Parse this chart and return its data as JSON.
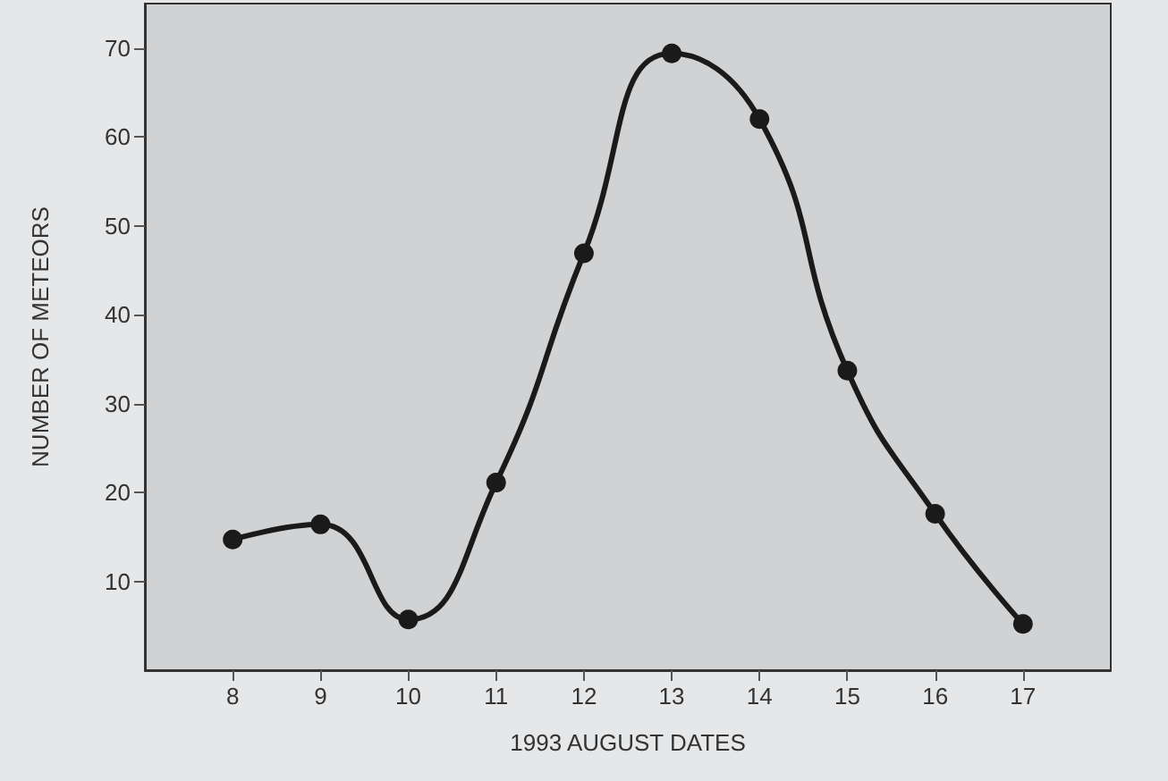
{
  "chart_data": {
    "type": "line",
    "xlabel": "1993 AUGUST DATES",
    "ylabel": "NUMBER OF METEORS",
    "x": [
      8,
      9,
      10,
      11,
      12,
      13,
      14,
      15,
      16,
      17
    ],
    "series": [
      {
        "color": "#1a1a1a",
        "values": [
          14.7,
          16.4,
          5.7,
          21.1,
          46.9,
          69.4,
          62.0,
          33.7,
          17.6,
          5.2
        ]
      }
    ],
    "xlim": [
      7,
      18
    ],
    "xticks": [
      8,
      9,
      10,
      11,
      12,
      13,
      14,
      15,
      16,
      17
    ],
    "ylim": [
      0,
      75
    ],
    "yticks": [
      10,
      20,
      30,
      40,
      50,
      60,
      70
    ],
    "grid": false,
    "marker": "circle",
    "line_style": "solid"
  }
}
